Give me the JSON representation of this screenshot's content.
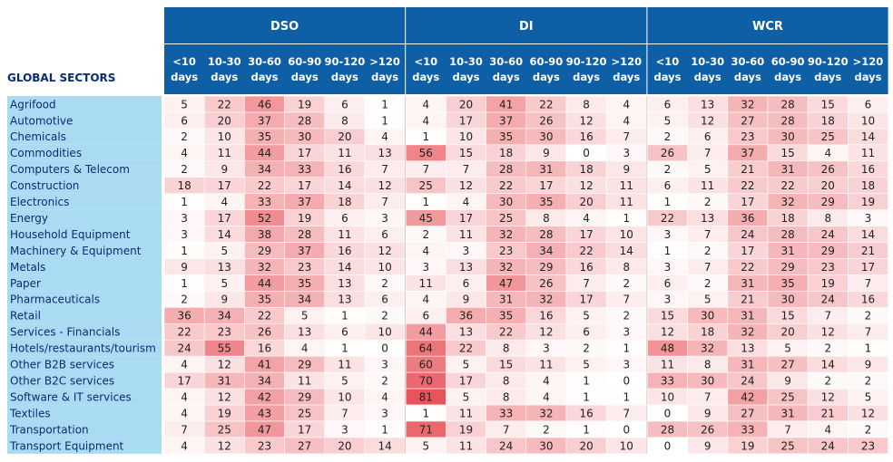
{
  "chart_data": {
    "type": "heatmap",
    "row_header": "GLOBAL SECTORS",
    "groups": [
      {
        "name": "DSO",
        "columns": [
          "<10 days",
          "10-30 days",
          "30-60 days",
          "60-90 days",
          "90-120 days",
          ">120 days"
        ]
      },
      {
        "name": "DI",
        "columns": [
          "<10 days",
          "10-30 days",
          "30-60 days",
          "60-90 days",
          "90-120 days",
          ">120 days"
        ]
      },
      {
        "name": "WCR",
        "columns": [
          "<10 days",
          "10-30 days",
          "30-60 days",
          "60-90 days",
          "90-120 days",
          ">120 days"
        ]
      }
    ],
    "rows": [
      {
        "label": "Agrifood",
        "values": [
          5,
          22,
          46,
          19,
          6,
          1,
          4,
          20,
          41,
          22,
          8,
          4,
          6,
          13,
          32,
          28,
          15,
          6
        ]
      },
      {
        "label": "Automotive",
        "values": [
          6,
          20,
          37,
          28,
          8,
          1,
          4,
          17,
          37,
          26,
          12,
          4,
          5,
          12,
          27,
          28,
          18,
          10
        ]
      },
      {
        "label": "Chemicals",
        "values": [
          2,
          10,
          35,
          30,
          20,
          4,
          1,
          10,
          35,
          30,
          16,
          7,
          2,
          6,
          23,
          30,
          25,
          14
        ]
      },
      {
        "label": "Commodities",
        "values": [
          4,
          11,
          44,
          17,
          11,
          13,
          56,
          15,
          18,
          9,
          0,
          3,
          26,
          7,
          37,
          15,
          4,
          11
        ]
      },
      {
        "label": "Computers & Telecom",
        "values": [
          2,
          9,
          34,
          33,
          16,
          7,
          7,
          7,
          28,
          31,
          18,
          9,
          2,
          5,
          21,
          31,
          26,
          16
        ]
      },
      {
        "label": "Construction",
        "values": [
          18,
          17,
          22,
          17,
          14,
          12,
          25,
          12,
          22,
          17,
          12,
          11,
          6,
          11,
          22,
          22,
          20,
          18
        ]
      },
      {
        "label": "Electronics",
        "values": [
          1,
          4,
          33,
          37,
          18,
          7,
          1,
          4,
          30,
          35,
          20,
          11,
          1,
          2,
          17,
          32,
          29,
          19
        ]
      },
      {
        "label": "Energy",
        "values": [
          3,
          17,
          52,
          19,
          6,
          3,
          45,
          17,
          25,
          8,
          4,
          1,
          22,
          13,
          36,
          18,
          8,
          3
        ]
      },
      {
        "label": "Household Equipment",
        "values": [
          3,
          14,
          38,
          28,
          11,
          6,
          2,
          11,
          32,
          28,
          17,
          10,
          3,
          7,
          24,
          28,
          24,
          14
        ]
      },
      {
        "label": "Machinery & Equipment",
        "values": [
          1,
          5,
          29,
          37,
          16,
          12,
          4,
          3,
          23,
          34,
          22,
          14,
          1,
          2,
          17,
          31,
          29,
          21
        ]
      },
      {
        "label": "Metals",
        "values": [
          9,
          13,
          32,
          23,
          14,
          10,
          3,
          13,
          32,
          29,
          16,
          8,
          3,
          7,
          22,
          29,
          23,
          17
        ]
      },
      {
        "label": "Paper",
        "values": [
          1,
          5,
          44,
          35,
          13,
          2,
          11,
          6,
          47,
          26,
          7,
          2,
          6,
          2,
          31,
          35,
          19,
          7
        ]
      },
      {
        "label": "Pharmaceuticals",
        "values": [
          2,
          9,
          35,
          34,
          13,
          6,
          4,
          9,
          31,
          32,
          17,
          7,
          3,
          5,
          21,
          30,
          24,
          16
        ]
      },
      {
        "label": "Retail",
        "values": [
          36,
          34,
          22,
          5,
          1,
          2,
          6,
          36,
          35,
          16,
          5,
          2,
          15,
          30,
          31,
          15,
          7,
          2
        ]
      },
      {
        "label": "Services - Financials",
        "values": [
          22,
          23,
          26,
          13,
          6,
          10,
          44,
          13,
          22,
          12,
          6,
          3,
          12,
          18,
          32,
          20,
          12,
          7
        ]
      },
      {
        "label": "Hotels/restaurants/tourism",
        "values": [
          24,
          55,
          16,
          4,
          1,
          0,
          64,
          22,
          8,
          3,
          2,
          1,
          48,
          32,
          13,
          5,
          2,
          1
        ]
      },
      {
        "label": "Other B2B services",
        "values": [
          4,
          12,
          41,
          29,
          11,
          3,
          60,
          5,
          15,
          11,
          5,
          3,
          11,
          8,
          31,
          27,
          14,
          9
        ]
      },
      {
        "label": "Other B2C services",
        "values": [
          17,
          31,
          34,
          11,
          5,
          2,
          70,
          17,
          8,
          4,
          1,
          0,
          33,
          30,
          24,
          9,
          2,
          2
        ]
      },
      {
        "label": "Software & IT services",
        "values": [
          4,
          12,
          42,
          29,
          10,
          4,
          81,
          5,
          8,
          4,
          1,
          1,
          10,
          7,
          42,
          25,
          12,
          5
        ]
      },
      {
        "label": "Textiles",
        "values": [
          4,
          19,
          43,
          25,
          7,
          3,
          1,
          11,
          33,
          32,
          16,
          7,
          0,
          9,
          27,
          31,
          21,
          12
        ]
      },
      {
        "label": "Transportation",
        "values": [
          7,
          25,
          47,
          17,
          3,
          1,
          71,
          19,
          7,
          2,
          1,
          0,
          28,
          26,
          33,
          7,
          4,
          2
        ]
      },
      {
        "label": "Transport Equipment",
        "values": [
          4,
          12,
          23,
          27,
          20,
          14,
          5,
          11,
          24,
          30,
          20,
          10,
          0,
          9,
          19,
          25,
          24,
          23
        ]
      }
    ],
    "color_scale": {
      "low": "#ffffff",
      "high": "#e8545a",
      "max_value": 81
    },
    "colors": {
      "header": "#0f5fa6",
      "row_label_bg": "#a9dcf3",
      "row_label_text": "#0a2d6e",
      "cell_text": "#222222"
    }
  }
}
